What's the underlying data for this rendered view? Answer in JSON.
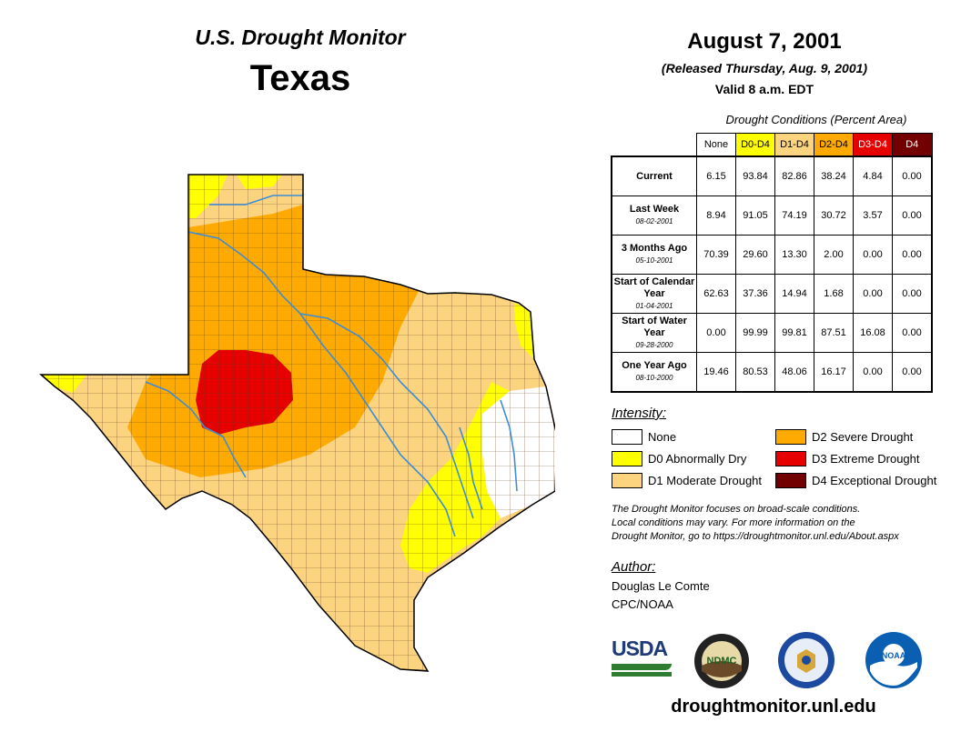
{
  "header": {
    "monitor_title": "U.S. Drought Monitor",
    "state": "Texas",
    "date": "August 7, 2001",
    "released": "(Released Thursday, Aug. 9, 2001)",
    "valid": "Valid 8 a.m. EDT"
  },
  "conditions": {
    "caption": "Drought Conditions (Percent Area)",
    "columns": [
      {
        "label": "None",
        "color": "#ffffff",
        "text_color": "#000000"
      },
      {
        "label": "D0-D4",
        "color": "#ffff00",
        "text_color": "#000000"
      },
      {
        "label": "D1-D4",
        "color": "#fcd37f",
        "text_color": "#000000"
      },
      {
        "label": "D2-D4",
        "color": "#ffaa00",
        "text_color": "#000000"
      },
      {
        "label": "D3-D4",
        "color": "#e60000",
        "text_color": "#ffffff"
      },
      {
        "label": "D4",
        "color": "#730000",
        "text_color": "#ffffff"
      }
    ],
    "rows": [
      {
        "label": "Current",
        "date": "",
        "values": [
          "6.15",
          "93.84",
          "82.86",
          "38.24",
          "4.84",
          "0.00"
        ]
      },
      {
        "label": "Last Week",
        "date": "08-02-2001",
        "values": [
          "8.94",
          "91.05",
          "74.19",
          "30.72",
          "3.57",
          "0.00"
        ]
      },
      {
        "label": "3 Months Ago",
        "date": "05-10-2001",
        "values": [
          "70.39",
          "29.60",
          "13.30",
          "2.00",
          "0.00",
          "0.00"
        ]
      },
      {
        "label": "Start of Calendar Year",
        "date": "01-04-2001",
        "values": [
          "62.63",
          "37.36",
          "14.94",
          "1.68",
          "0.00",
          "0.00"
        ]
      },
      {
        "label": "Start of Water Year",
        "date": "09-28-2000",
        "values": [
          "0.00",
          "99.99",
          "99.81",
          "87.51",
          "16.08",
          "0.00"
        ]
      },
      {
        "label": "One Year Ago",
        "date": "08-10-2000",
        "values": [
          "19.46",
          "80.53",
          "48.06",
          "16.17",
          "0.00",
          "0.00"
        ]
      }
    ]
  },
  "legend": {
    "title": "Intensity:",
    "items": [
      {
        "label": "None",
        "color": "#ffffff"
      },
      {
        "label": "D0 Abnormally Dry",
        "color": "#ffff00"
      },
      {
        "label": "D1 Moderate Drought",
        "color": "#fcd37f"
      },
      {
        "label": "D2 Severe Drought",
        "color": "#ffaa00"
      },
      {
        "label": "D3 Extreme Drought",
        "color": "#e60000"
      },
      {
        "label": "D4 Exceptional Drought",
        "color": "#730000"
      }
    ]
  },
  "note": {
    "line1": "The Drought Monitor focuses on broad-scale conditions.",
    "line2": "Local conditions may vary. For more information on the",
    "line3": "Drought Monitor, go to https://droughtmonitor.unl.edu/About.aspx"
  },
  "author": {
    "label": "Author:",
    "name": "Douglas Le Comte",
    "org": "CPC/NOAA"
  },
  "logos": {
    "usda": "USDA",
    "ndmc": "NDMC",
    "noaa": "NOAA"
  },
  "website": "droughtmonitor.unl.edu",
  "map": {
    "region": "Texas",
    "river_color": "#3c8dd8",
    "county_line_color": "#5a3a1a"
  }
}
